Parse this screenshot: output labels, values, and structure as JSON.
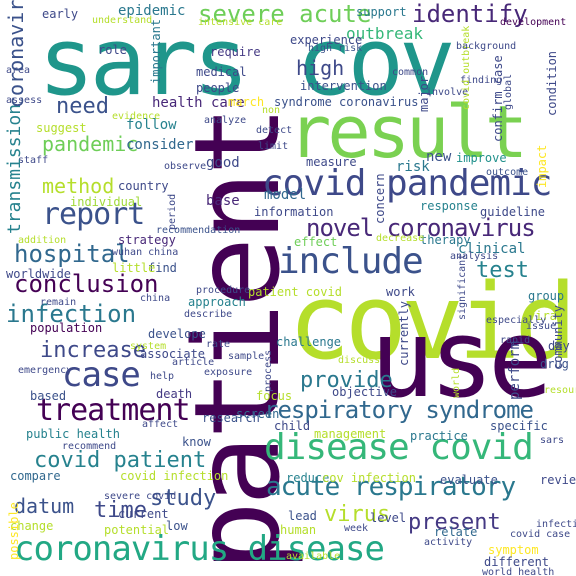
{
  "words": [
    {
      "text": "sars cov",
      "color": "#1f968b"
    },
    {
      "text": "patient",
      "color": "#440154"
    },
    {
      "text": "covid",
      "color": "#b5de2b"
    },
    {
      "text": "use",
      "color": "#440154"
    },
    {
      "text": "result",
      "color": "#7ad151"
    },
    {
      "text": "disease covid",
      "color": "#35b779"
    },
    {
      "text": "covid pandemic",
      "color": "#3e4989"
    },
    {
      "text": "include",
      "color": "#3b528b"
    },
    {
      "text": "coronavirus disease",
      "color": "#22a884"
    },
    {
      "text": "acute respiratory",
      "color": "#2a788e"
    },
    {
      "text": "respiratory syndrome",
      "color": "#31688e"
    },
    {
      "text": "report",
      "color": "#3b528b"
    },
    {
      "text": "case",
      "color": "#3e4989"
    },
    {
      "text": "treatment",
      "color": "#440154"
    },
    {
      "text": "novel coronavirus",
      "color": "#482878"
    },
    {
      "text": "severe acute",
      "color": "#6ece58"
    },
    {
      "text": "identify",
      "color": "#482878"
    },
    {
      "text": "hospital",
      "color": "#31688e"
    },
    {
      "text": "conclusion",
      "color": "#440154"
    },
    {
      "text": "infection",
      "color": "#2a788e"
    },
    {
      "text": "increase",
      "color": "#3e4989"
    },
    {
      "text": "provide",
      "color": "#2a788e"
    },
    {
      "text": "covid patient",
      "color": "#26828e"
    },
    {
      "text": "study",
      "color": "#3b528b"
    },
    {
      "text": "time",
      "color": "#3e4989"
    },
    {
      "text": "datum",
      "color": "#3b528b"
    },
    {
      "text": "virus",
      "color": "#b5de2b"
    },
    {
      "text": "present",
      "color": "#443983"
    },
    {
      "text": "test",
      "color": "#26828e"
    },
    {
      "text": "need",
      "color": "#3b528b"
    },
    {
      "text": "high",
      "color": "#3e4989"
    },
    {
      "text": "method",
      "color": "#b5de2b"
    },
    {
      "text": "pandemic",
      "color": "#6ece58"
    },
    {
      "text": "outbreak",
      "color": "#35b779"
    },
    {
      "text": "experience",
      "color": "#3e4989"
    },
    {
      "text": "health care",
      "color": "#482878"
    },
    {
      "text": "march",
      "color": "#fde725"
    },
    {
      "text": "syndrome coronavirus",
      "color": "#3b528b"
    },
    {
      "text": "follow",
      "color": "#26828e"
    },
    {
      "text": "consider",
      "color": "#31688e"
    },
    {
      "text": "good",
      "color": "#3e4989"
    },
    {
      "text": "base",
      "color": "#482878"
    },
    {
      "text": "model",
      "color": "#31688e"
    },
    {
      "text": "information",
      "color": "#3e4989"
    },
    {
      "text": "clinical",
      "color": "#2a788e"
    },
    {
      "text": "guideline",
      "color": "#3e4989"
    },
    {
      "text": "impact",
      "color": "#fde725"
    },
    {
      "text": "risk",
      "color": "#2a788e"
    },
    {
      "text": "new",
      "color": "#3b528b"
    },
    {
      "text": "improve",
      "color": "#21918c"
    },
    {
      "text": "therapy",
      "color": "#2a788e"
    },
    {
      "text": "effect",
      "color": "#6ece58"
    },
    {
      "text": "country",
      "color": "#3e4989"
    },
    {
      "text": "individual",
      "color": "#a0da39"
    },
    {
      "text": "strategy",
      "color": "#482878"
    },
    {
      "text": "find",
      "color": "#3b528b"
    },
    {
      "text": "little",
      "color": "#b5de2b"
    },
    {
      "text": "approach",
      "color": "#26828e"
    },
    {
      "text": "patient covid",
      "color": "#b5de2b"
    },
    {
      "text": "work",
      "color": "#3e4989"
    },
    {
      "text": "group",
      "color": "#2a788e"
    },
    {
      "text": "viral",
      "color": "#b5de2b"
    },
    {
      "text": "population",
      "color": "#440154"
    },
    {
      "text": "associate",
      "color": "#3e4989"
    },
    {
      "text": "develope",
      "color": "#3b528b"
    },
    {
      "text": "challenge",
      "color": "#2a788e"
    },
    {
      "text": "day",
      "color": "#3e4989"
    },
    {
      "text": "drug",
      "color": "#3b528b"
    },
    {
      "text": "screen",
      "color": "#31688e"
    },
    {
      "text": "research",
      "color": "#3b528b"
    },
    {
      "text": "death",
      "color": "#443983"
    },
    {
      "text": "child",
      "color": "#3e4989"
    },
    {
      "text": "specific",
      "color": "#3b528b"
    },
    {
      "text": "public health",
      "color": "#26828e"
    },
    {
      "text": "practice",
      "color": "#2a788e"
    },
    {
      "text": "management",
      "color": "#b5de2b"
    },
    {
      "text": "review",
      "color": "#3e4989"
    },
    {
      "text": "evaluate",
      "color": "#3b528b"
    },
    {
      "text": "reduce",
      "color": "#26828e"
    },
    {
      "text": "cov infection",
      "color": "#b5de2b"
    },
    {
      "text": "lead",
      "color": "#3b528b"
    },
    {
      "text": "relate",
      "color": "#31688e"
    },
    {
      "text": "level",
      "color": "#3e4989"
    },
    {
      "text": "symptom",
      "color": "#fde725"
    },
    {
      "text": "different",
      "color": "#3e4989"
    },
    {
      "text": "potential",
      "color": "#b5de2b"
    },
    {
      "text": "change",
      "color": "#b5de2b"
    },
    {
      "text": "low",
      "color": "#3b528b"
    },
    {
      "text": "human",
      "color": "#b5de2b"
    },
    {
      "text": "current",
      "color": "#3e4989"
    },
    {
      "text": "covid infection",
      "color": "#b5de2b"
    },
    {
      "text": "compare",
      "color": "#31688e"
    },
    {
      "text": "based",
      "color": "#3b528b"
    },
    {
      "text": "know",
      "color": "#3b528b"
    },
    {
      "text": "epidemic",
      "color": "#2a788e"
    },
    {
      "text": "early",
      "color": "#3e4989"
    },
    {
      "text": "support",
      "color": "#2a788e"
    },
    {
      "text": "understand",
      "color": "#b5de2b"
    },
    {
      "text": "intensive care",
      "color": "#b5de2b"
    },
    {
      "text": "development",
      "color": "#440154"
    },
    {
      "text": "role",
      "color": "#3e4989"
    },
    {
      "text": "require",
      "color": "#443983"
    },
    {
      "text": "high risk",
      "color": "#3b528b"
    },
    {
      "text": "important",
      "color": "#2a788e"
    },
    {
      "text": "medical",
      "color": "#3e4989"
    },
    {
      "text": "people",
      "color": "#3e4989"
    },
    {
      "text": "intervention",
      "color": "#3b528b"
    },
    {
      "text": "suggest",
      "color": "#b5de2b"
    },
    {
      "text": "staff",
      "color": "#3e4989"
    },
    {
      "text": "evidence",
      "color": "#b5de2b"
    },
    {
      "text": "analyze",
      "color": "#3e4989"
    },
    {
      "text": "detect",
      "color": "#3e4989"
    },
    {
      "text": "limit",
      "color": "#3e4989"
    },
    {
      "text": "measure",
      "color": "#3e4989"
    },
    {
      "text": "observe",
      "color": "#3e4989"
    },
    {
      "text": "outcome",
      "color": "#3b528b"
    },
    {
      "text": "recommendation",
      "color": "#3b528b"
    },
    {
      "text": "decrease",
      "color": "#b5de2b"
    },
    {
      "text": "response",
      "color": "#26828e"
    },
    {
      "text": "worldwide",
      "color": "#3e4989"
    },
    {
      "text": "wuhan china",
      "color": "#3e4989"
    },
    {
      "text": "china",
      "color": "#3e4989"
    },
    {
      "text": "remain",
      "color": "#3e4989"
    },
    {
      "text": "procedure",
      "color": "#3e4989"
    },
    {
      "text": "describe",
      "color": "#3e4989"
    },
    {
      "text": "addition",
      "color": "#b5de2b"
    },
    {
      "text": "period",
      "color": "#3e4989"
    },
    {
      "text": "system",
      "color": "#b5de2b"
    },
    {
      "text": "rate",
      "color": "#3e4989"
    },
    {
      "text": "article",
      "color": "#3e4989"
    },
    {
      "text": "emergency",
      "color": "#3e4989"
    },
    {
      "text": "help",
      "color": "#3e4989"
    },
    {
      "text": "exposure",
      "color": "#3e4989"
    },
    {
      "text": "sample",
      "color": "#3e4989"
    },
    {
      "text": "focus",
      "color": "#b5de2b"
    },
    {
      "text": "objective",
      "color": "#3e4989"
    },
    {
      "text": "affect",
      "color": "#3e4989"
    },
    {
      "text": "recommend",
      "color": "#3e4989"
    },
    {
      "text": "severe covid",
      "color": "#3e4989"
    },
    {
      "text": "available",
      "color": "#b5de2b"
    },
    {
      "text": "week",
      "color": "#3e4989"
    },
    {
      "text": "activity",
      "color": "#3e4989"
    },
    {
      "text": "covid case",
      "color": "#3e4989"
    },
    {
      "text": "world health",
      "color": "#3e4989"
    },
    {
      "text": "infectious disease",
      "color": "#3e4989"
    },
    {
      "text": "resource",
      "color": "#b5de2b"
    },
    {
      "text": "issue",
      "color": "#3e4989"
    },
    {
      "text": "especially",
      "color": "#3e4989"
    },
    {
      "text": "rapid",
      "color": "#3e4989"
    },
    {
      "text": "discuss",
      "color": "#b5de2b"
    },
    {
      "text": "analysis",
      "color": "#3e4989"
    },
    {
      "text": "world",
      "color": "#b5de2b"
    },
    {
      "text": "process",
      "color": "#3e4989"
    },
    {
      "text": "significant",
      "color": "#3e4989"
    },
    {
      "text": "finding",
      "color": "#3e4989"
    },
    {
      "text": "involve",
      "color": "#3e4989"
    },
    {
      "text": "condition",
      "color": "#3e4989"
    },
    {
      "text": "confirm case",
      "color": "#3e4989"
    },
    {
      "text": "covid outbreak",
      "color": "#b5de2b"
    },
    {
      "text": "global",
      "color": "#3e4989"
    },
    {
      "text": "common",
      "color": "#3e4989"
    },
    {
      "text": "major",
      "color": "#3e4989"
    },
    {
      "text": "background",
      "color": "#3e4989"
    },
    {
      "text": "non",
      "color": "#b5de2b"
    },
    {
      "text": "assess",
      "color": "#3e4989"
    },
    {
      "text": "area",
      "color": "#3e4989"
    },
    {
      "text": "concern",
      "color": "#3e4989"
    },
    {
      "text": "currently",
      "color": "#3e4989"
    },
    {
      "text": "community",
      "color": "#3e4989"
    },
    {
      "text": "perform",
      "color": "#3e4989"
    },
    {
      "text": "possible",
      "color": "#fde725"
    },
    {
      "text": "transmission",
      "color": "#26828e"
    },
    {
      "text": "coronavirus",
      "color": "#3b528b"
    },
    {
      "text": "sars",
      "color": "#3e4989"
    },
    {
      "text": "lung",
      "color": "#b5de2b"
    }
  ]
}
